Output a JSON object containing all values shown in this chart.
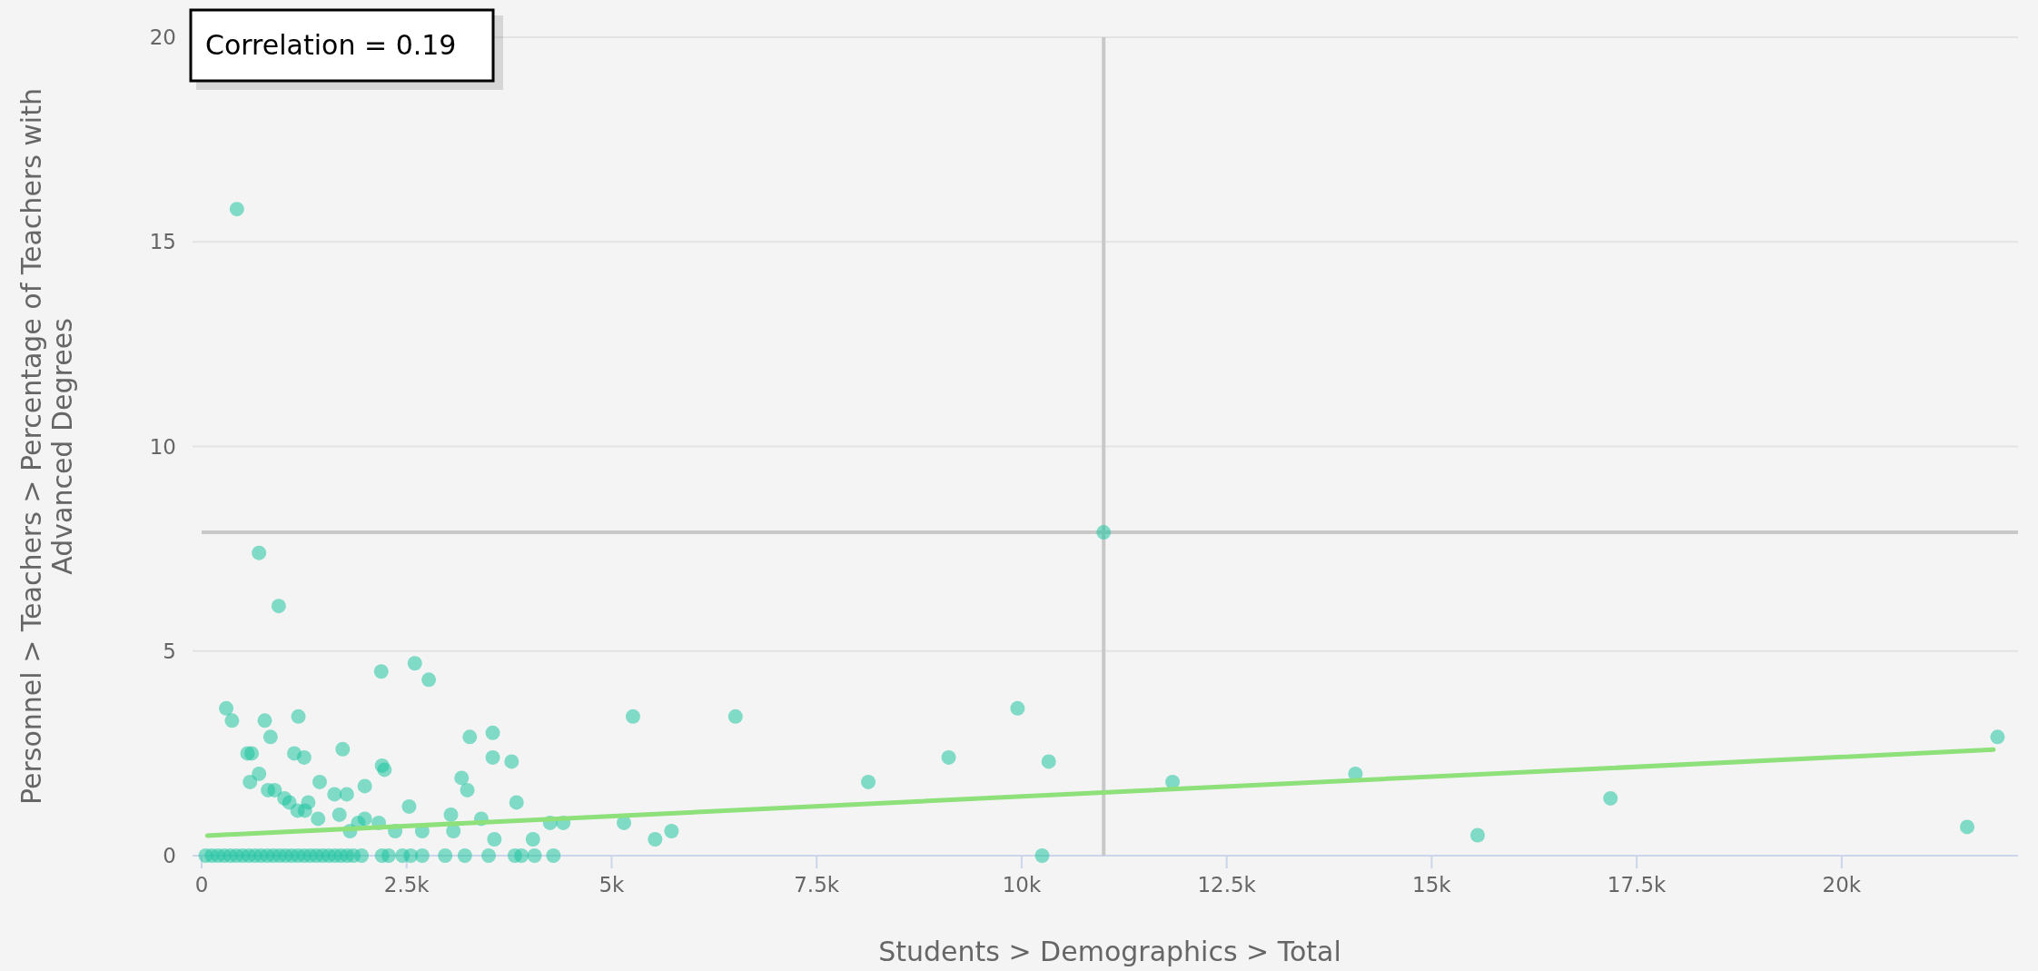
{
  "chart_data": {
    "type": "scatter",
    "xlabel": "Students > Demographics > Total",
    "ylabel": "Personnel > Teachers > Percentage of Teachers with Advanced Degrees",
    "annotations": [
      "Correlation = 0.19"
    ],
    "xlim": [
      0,
      22150
    ],
    "ylim": [
      0,
      20
    ],
    "xticks": [
      0,
      {
        "value": 2500,
        "label": "2.5k"
      },
      {
        "value": 5000,
        "label": "5k"
      },
      {
        "value": 7500,
        "label": "7.5k"
      },
      {
        "value": 10000,
        "label": "10k"
      },
      {
        "value": 12500,
        "label": "12.5k"
      },
      {
        "value": 15000,
        "label": "15k"
      },
      {
        "value": 17500,
        "label": "17.5k"
      },
      {
        "value": 20000,
        "label": "20k"
      }
    ],
    "yticks": [
      0,
      5,
      10,
      15,
      20
    ],
    "grid": "y",
    "ref_lines": [
      {
        "axis": "x",
        "value": 11000,
        "color": "#c8c8c8"
      },
      {
        "axis": "y",
        "value": 7.9,
        "color": "#c8c8c8"
      }
    ],
    "series": [
      {
        "marker": "circle",
        "color": "#1fc4a0",
        "x": [
          50,
          125,
          200,
          275,
          350,
          425,
          500,
          575,
          650,
          725,
          800,
          875,
          950,
          1025,
          1100,
          1175,
          1250,
          1325,
          1400,
          1475,
          1550,
          1625,
          1700,
          1775,
          1850,
          1950,
          2200,
          2280,
          2450,
          2550,
          2690,
          2970,
          3210,
          3500,
          3820,
          3900,
          4060,
          4290,
          10250,
          430,
          700,
          940,
          2190,
          2600,
          2770,
          300,
          370,
          770,
          1180,
          840,
          3270,
          3550,
          560,
          610,
          1130,
          1250,
          1720,
          3550,
          3780,
          2200,
          2230,
          700,
          590,
          810,
          890,
          1010,
          1070,
          1170,
          1260,
          1300,
          1440,
          1620,
          1770,
          1990,
          1420,
          1680,
          1810,
          1990,
          2160,
          2530,
          3040,
          3070,
          3170,
          3240,
          3410,
          3570,
          3840,
          4040,
          4250,
          4410,
          2360,
          2690,
          1910,
          5260,
          6510,
          8130,
          9110,
          9950,
          10330,
          11000,
          11840,
          5150,
          5530,
          5730,
          14070,
          15560,
          17180,
          21530,
          21900
        ],
        "values": [
          0,
          0,
          0,
          0,
          0,
          0,
          0,
          0,
          0,
          0,
          0,
          0,
          0,
          0,
          0,
          0,
          0,
          0,
          0,
          0,
          0,
          0,
          0,
          0,
          0,
          0,
          0,
          0,
          0,
          0,
          0,
          0,
          0,
          0,
          0,
          0,
          0,
          0,
          0,
          15.8,
          7.4,
          6.1,
          4.5,
          4.7,
          4.3,
          3.6,
          3.3,
          3.3,
          3.4,
          2.9,
          2.9,
          3.0,
          2.5,
          2.5,
          2.5,
          2.4,
          2.6,
          2.4,
          2.3,
          2.2,
          2.1,
          2.0,
          1.8,
          1.6,
          1.6,
          1.4,
          1.3,
          1.1,
          1.1,
          1.3,
          1.8,
          1.5,
          1.5,
          1.7,
          0.9,
          1.0,
          0.6,
          0.9,
          0.8,
          1.2,
          1.0,
          0.6,
          1.9,
          1.6,
          0.9,
          0.4,
          1.3,
          0.4,
          0.8,
          0.8,
          0.6,
          0.6,
          0.8,
          3.4,
          3.4,
          1.8,
          2.4,
          3.6,
          2.3,
          7.9,
          1.8,
          0.8,
          0.4,
          0.6,
          2.0,
          0.5,
          1.4,
          0.7,
          2.9
        ]
      },
      {
        "type": "line",
        "color": "#8ee07a",
        "x": [
          70,
          21850
        ],
        "values": [
          0.49,
          2.59
        ]
      }
    ]
  }
}
